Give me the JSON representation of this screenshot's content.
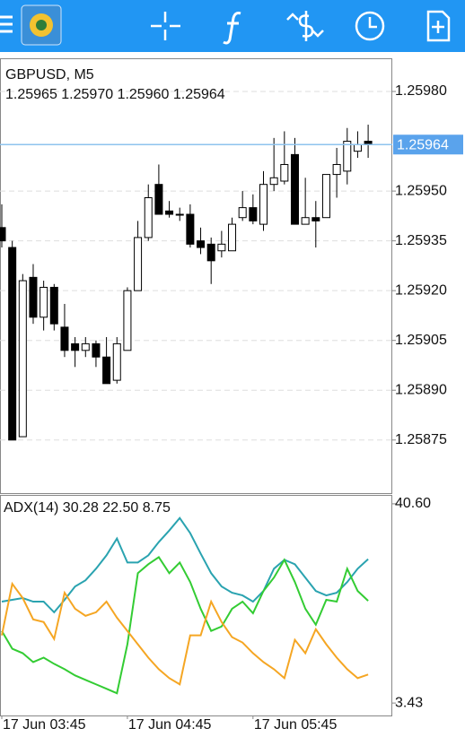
{
  "chart_data": [
    {
      "type": "candlestick",
      "title": "GBPUSD, M5",
      "subtitle": "1.25965 1.25970 1.25960 1.25964",
      "open": [
        1.25939,
        1.25933,
        1.25876,
        1.25924,
        1.25912,
        1.25921,
        1.25909,
        1.25904,
        1.25902,
        1.25904,
        1.259,
        1.25893,
        1.25902,
        1.2592,
        1.25936,
        1.25952,
        1.25944,
        1.25943,
        1.25943,
        1.25935,
        1.25934,
        1.25932,
        1.25932,
        1.25942,
        1.25945,
        1.2594,
        1.25952,
        1.25953,
        1.25961,
        1.2594,
        1.25942,
        1.25942,
        1.25955,
        1.25956,
        1.25962,
        1.25965
      ],
      "high": [
        1.25946,
        1.25935,
        1.25925,
        1.25928,
        1.25923,
        1.25922,
        1.25916,
        1.25906,
        1.25906,
        1.25905,
        1.25906,
        1.25906,
        1.25921,
        1.25941,
        1.25952,
        1.25958,
        1.25947,
        1.25945,
        1.25946,
        1.25939,
        1.25936,
        1.25938,
        1.25942,
        1.2595,
        1.25949,
        1.25956,
        1.25966,
        1.25968,
        1.25966,
        1.25954,
        1.25947,
        1.25955,
        1.25963,
        1.25969,
        1.25968,
        1.2597
      ],
      "low": [
        1.25933,
        1.25875,
        1.25876,
        1.2591,
        1.25908,
        1.25908,
        1.259,
        1.25897,
        1.259,
        1.25897,
        1.25892,
        1.25892,
        1.25902,
        1.2592,
        1.25935,
        1.25943,
        1.25942,
        1.25941,
        1.25933,
        1.25931,
        1.25922,
        1.2593,
        1.25932,
        1.25941,
        1.2594,
        1.25938,
        1.2595,
        1.25952,
        1.2594,
        1.2594,
        1.25933,
        1.25942,
        1.25948,
        1.25952,
        1.2596,
        1.2596
      ],
      "close": [
        1.25935,
        1.25875,
        1.25923,
        1.25912,
        1.25921,
        1.2591,
        1.25902,
        1.25902,
        1.25904,
        1.259,
        1.25892,
        1.25904,
        1.2592,
        1.25936,
        1.25948,
        1.25943,
        1.25943,
        1.25943,
        1.25934,
        1.25933,
        1.25929,
        1.25934,
        1.2594,
        1.25945,
        1.25941,
        1.25952,
        1.25954,
        1.25958,
        1.2594,
        1.25942,
        1.25941,
        1.25955,
        1.25958,
        1.25965,
        1.25964,
        1.25964
      ],
      "up_color": "#ffffff",
      "down_color": "#000000",
      "ylim": [
        1.25859,
        1.2599
      ],
      "yticks": [
        {
          "value": 1.2598,
          "label": "1.25980"
        },
        {
          "value": 1.2595,
          "label": "1.25950"
        },
        {
          "value": 1.25935,
          "label": "1.25935"
        },
        {
          "value": 1.2592,
          "label": "1.25920"
        },
        {
          "value": 1.25905,
          "label": "1.25905"
        },
        {
          "value": 1.2589,
          "label": "1.25890"
        },
        {
          "value": 1.25875,
          "label": "1.25875"
        }
      ],
      "current_price": {
        "value": 1.25964,
        "label": "1.25964"
      },
      "grid": true
    },
    {
      "type": "line",
      "title": "ADX(14) 30.28 22.50 8.75",
      "categories": [
        "17 Jun 03:45",
        null,
        null,
        null,
        null,
        null,
        null,
        null,
        null,
        null,
        null,
        null,
        "17 Jun 04:45",
        null,
        null,
        null,
        null,
        null,
        null,
        null,
        null,
        null,
        null,
        null,
        "17 Jun 05:45",
        null,
        null,
        null,
        null,
        null,
        null,
        null,
        null,
        null,
        null,
        null
      ],
      "series": [
        {
          "color": "#2aa3b0",
          "values": [
            22.35,
            22.68,
            23.01,
            22.35,
            22.35,
            20.36,
            22.68,
            25.17,
            26.33,
            28.49,
            30.98,
            34.13,
            29.65,
            29.65,
            30.98,
            33.47,
            35.62,
            37.95,
            35.13,
            31.31,
            27.66,
            25.17,
            24.01,
            23.51,
            22.35,
            24.34,
            28.49,
            30.15,
            29.32,
            26.83,
            24.34,
            23.51,
            24.01,
            26.0,
            28.49,
            30.28
          ]
        },
        {
          "color": "#33cc33",
          "values": [
            16.88,
            13.56,
            12.73,
            11.07,
            11.9,
            10.74,
            9.74,
            8.58,
            7.75,
            6.92,
            6.09,
            5.26,
            14.39,
            27.66,
            29.32,
            30.65,
            27.66,
            29.65,
            26.0,
            21.02,
            16.88,
            17.71,
            21.02,
            22.35,
            20.19,
            24.34,
            26.83,
            30.15,
            26.0,
            21.02,
            18.04,
            22.68,
            22.35,
            28.49,
            24.34,
            22.5
          ]
        },
        {
          "color": "#f5a623",
          "values": [
            16.05,
            25.67,
            23.01,
            19.03,
            18.54,
            15.38,
            24.01,
            21.02,
            19.7,
            20.36,
            22.35,
            19.36,
            16.88,
            14.39,
            11.9,
            9.74,
            8.08,
            6.92,
            16.05,
            16.05,
            22.35,
            18.54,
            15.72,
            14.72,
            12.73,
            11.07,
            9.74,
            8.08,
            15.22,
            12.73,
            17.21,
            14.39,
            11.9,
            9.74,
            8.08,
            8.75
          ]
        }
      ],
      "ylim": [
        1.11,
        42.09
      ],
      "yticks": [
        {
          "value": 40.6,
          "label": "40.60"
        },
        3.43
      ]
    }
  ]
}
